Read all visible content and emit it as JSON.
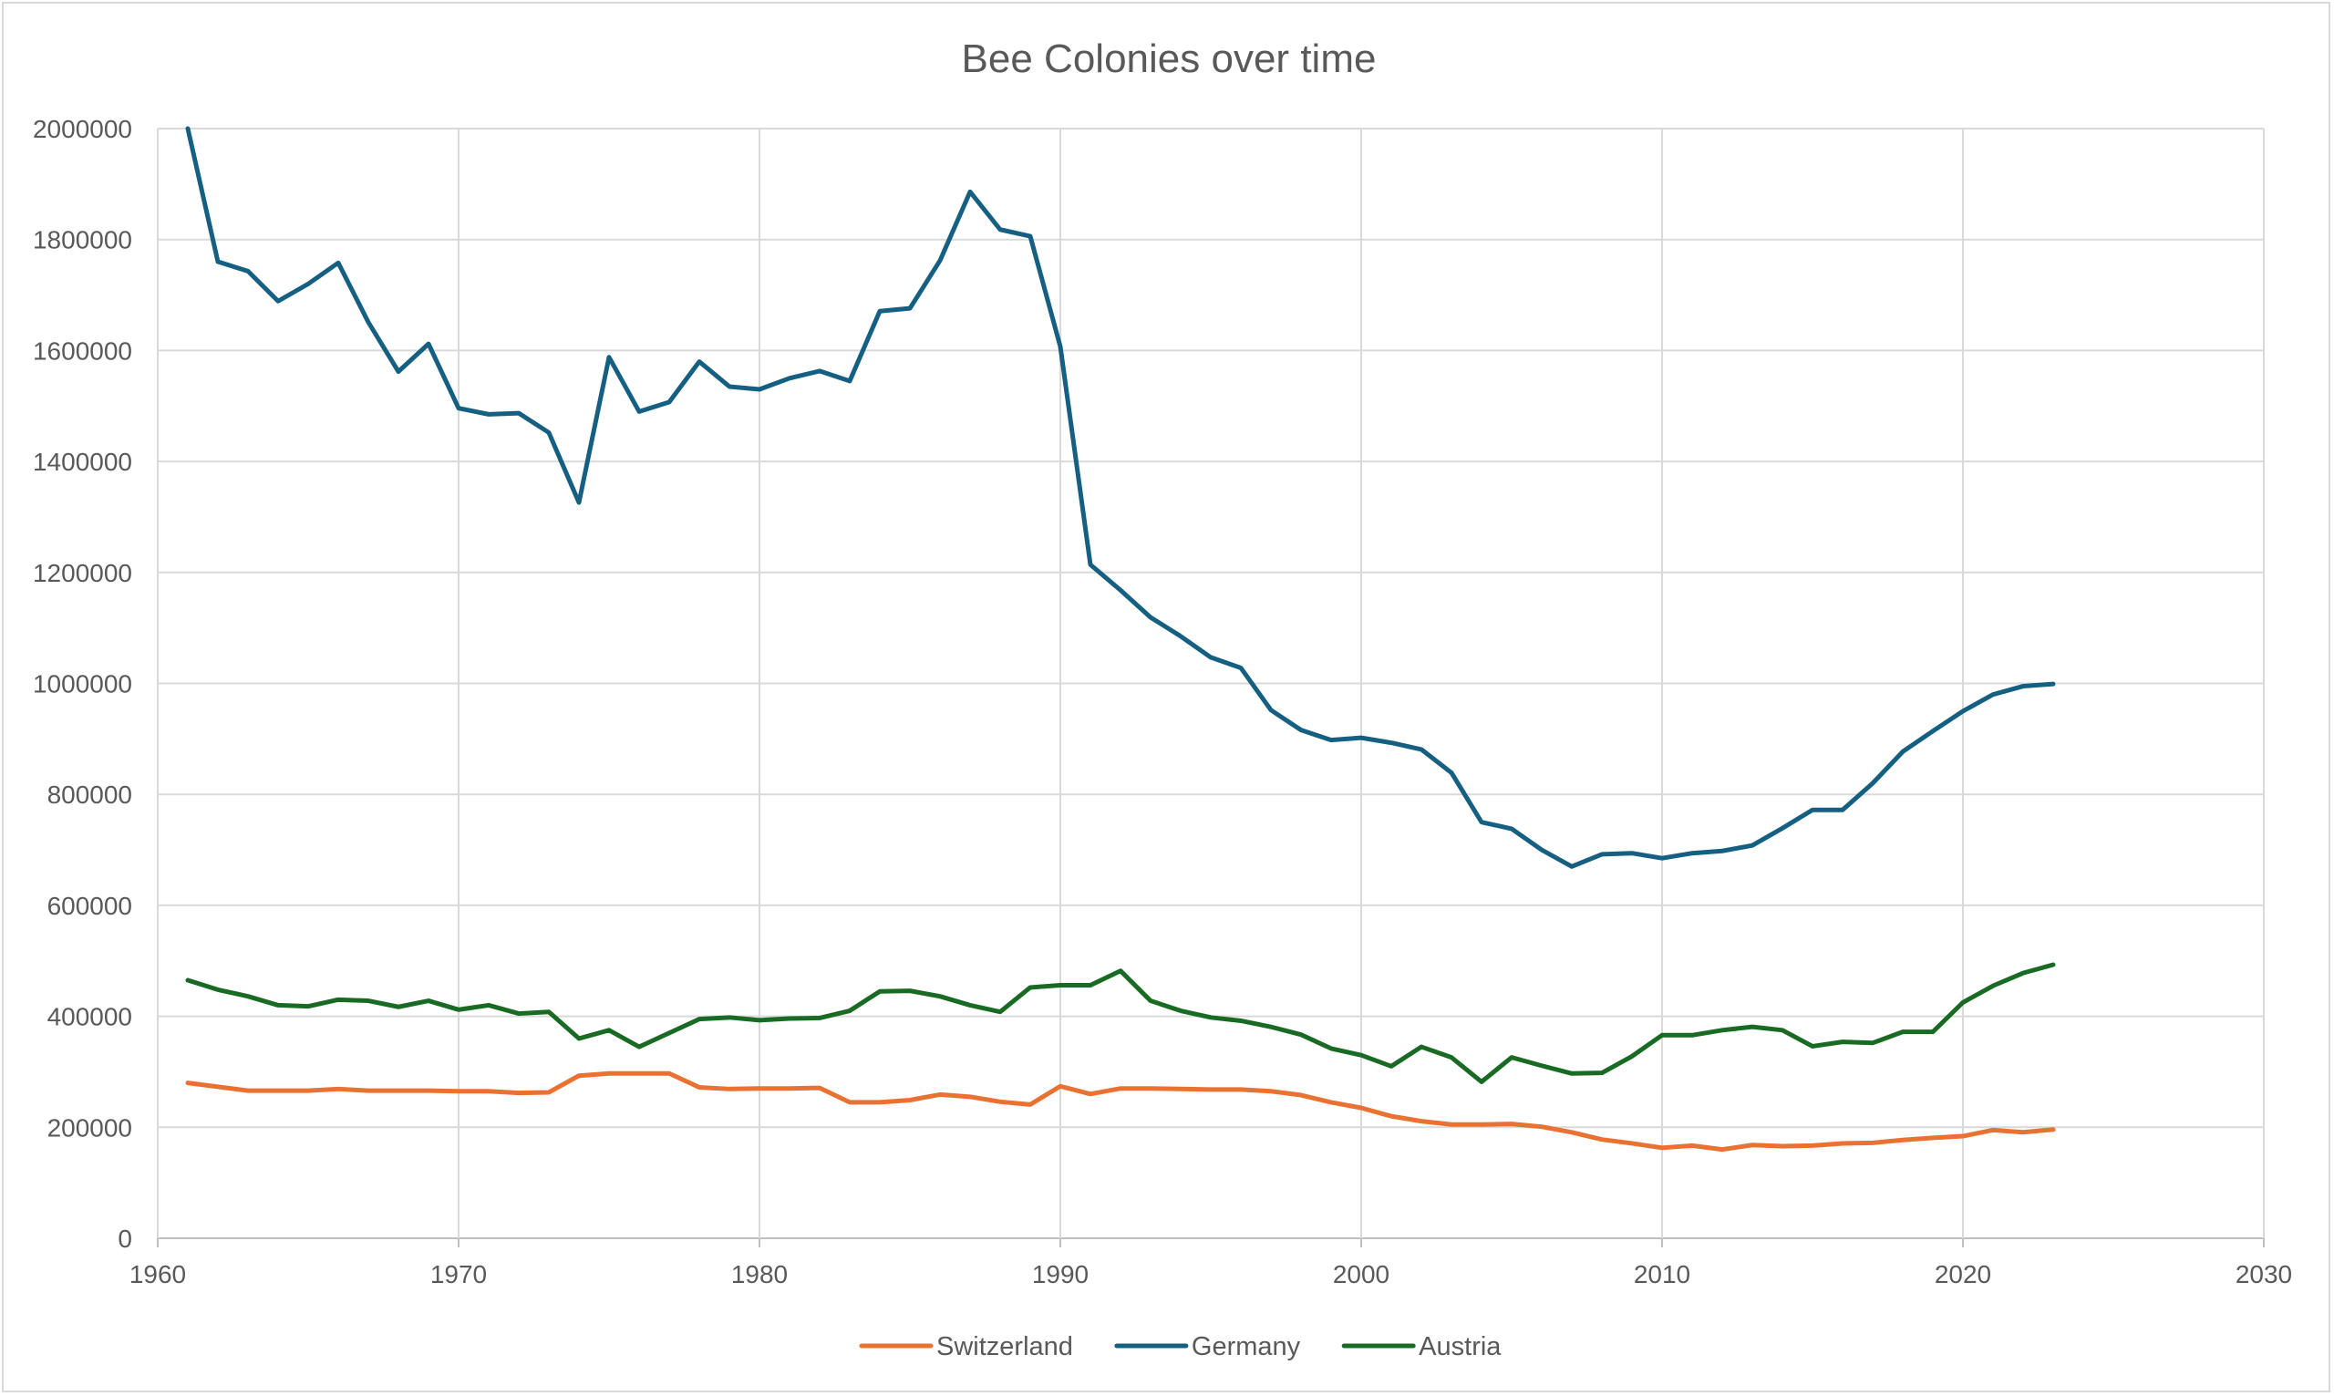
{
  "chart_data": {
    "type": "line",
    "title": "Bee Colonies over time",
    "xlabel": "",
    "ylabel": "",
    "xlim": [
      1960,
      2030
    ],
    "ylim": [
      0,
      2000000
    ],
    "x_ticks": [
      1960,
      1970,
      1980,
      1990,
      2000,
      2010,
      2020,
      2030
    ],
    "y_ticks": [
      0,
      200000,
      400000,
      600000,
      800000,
      1000000,
      1200000,
      1400000,
      1600000,
      1800000,
      2000000
    ],
    "grid": true,
    "legend_position": "bottom",
    "x": [
      1961,
      1962,
      1963,
      1964,
      1965,
      1966,
      1967,
      1968,
      1969,
      1970,
      1971,
      1972,
      1973,
      1974,
      1975,
      1976,
      1977,
      1978,
      1979,
      1980,
      1981,
      1982,
      1983,
      1984,
      1985,
      1986,
      1987,
      1988,
      1989,
      1990,
      1991,
      1992,
      1993,
      1994,
      1995,
      1996,
      1997,
      1998,
      1999,
      2000,
      2001,
      2002,
      2003,
      2004,
      2005,
      2006,
      2007,
      2008,
      2009,
      2010,
      2011,
      2012,
      2013,
      2014,
      2015,
      2016,
      2017,
      2018,
      2019,
      2020,
      2021,
      2022,
      2023
    ],
    "series": [
      {
        "name": "Switzerland",
        "color": "#e97132",
        "values": [
          280000,
          273000,
          266000,
          266000,
          266000,
          269000,
          266000,
          266000,
          266000,
          265000,
          265000,
          262000,
          263000,
          293000,
          297000,
          297000,
          297000,
          272000,
          269000,
          270000,
          270000,
          271000,
          245000,
          245000,
          249000,
          259000,
          255000,
          246000,
          241000,
          274000,
          260000,
          270000,
          270000,
          269000,
          268000,
          268000,
          265000,
          258000,
          245000,
          235000,
          220000,
          211000,
          205000,
          205000,
          206000,
          201000,
          191000,
          178000,
          171000,
          163000,
          167000,
          160000,
          168000,
          166000,
          167000,
          171000,
          172000,
          177000,
          181000,
          184000,
          195000,
          191000,
          196000
        ]
      },
      {
        "name": "Germany",
        "color": "#156082",
        "values": [
          2000000,
          1760000,
          1743000,
          1689000,
          1720000,
          1758000,
          1651000,
          1562000,
          1612000,
          1496000,
          1485000,
          1487000,
          1452000,
          1326000,
          1588000,
          1490000,
          1507000,
          1580000,
          1535000,
          1530000,
          1550000,
          1563000,
          1545000,
          1671000,
          1676000,
          1762000,
          1886000,
          1818000,
          1806000,
          1607000,
          1214000,
          1168000,
          1119000,
          1085000,
          1047000,
          1028000,
          952000,
          916000,
          898000,
          902000,
          893000,
          881000,
          839000,
          750000,
          738000,
          700000,
          670000,
          692000,
          694000,
          685000,
          694000,
          698000,
          708000,
          739000,
          772000,
          772000,
          820000,
          877000,
          914000,
          950000,
          980000,
          995000,
          999000
        ]
      },
      {
        "name": "Austria",
        "color": "#196b24",
        "values": [
          465000,
          448000,
          436000,
          420000,
          418000,
          430000,
          428000,
          417000,
          428000,
          412000,
          420000,
          405000,
          408000,
          360000,
          375000,
          345000,
          370000,
          395000,
          398000,
          393000,
          396000,
          397000,
          410000,
          445000,
          446000,
          436000,
          420000,
          408000,
          452000,
          456000,
          456000,
          482000,
          428000,
          410000,
          398000,
          392000,
          381000,
          367000,
          342000,
          330000,
          310000,
          345000,
          326000,
          282000,
          326000,
          311000,
          297000,
          298000,
          328000,
          366000,
          366000,
          375000,
          381000,
          375000,
          346000,
          354000,
          352000,
          372000,
          372000,
          425000,
          455000,
          478000,
          493000
        ]
      }
    ]
  }
}
